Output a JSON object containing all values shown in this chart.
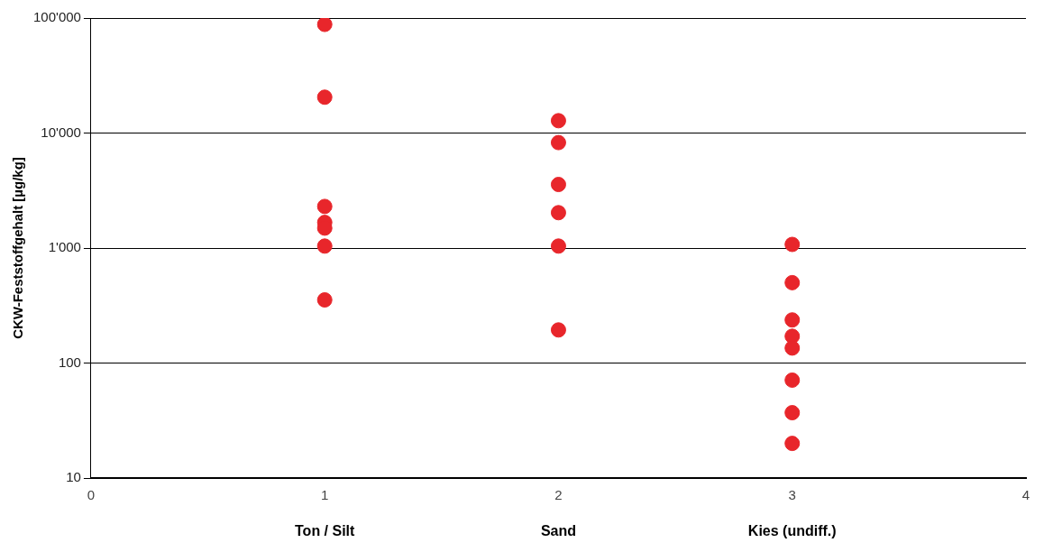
{
  "chart_data": {
    "type": "scatter",
    "ylabel": "CKW-Feststoffgehalt [µg/kg]",
    "x": [
      1,
      1,
      1,
      1,
      1,
      1,
      1,
      2,
      2,
      2,
      2,
      2,
      2,
      3,
      3,
      3,
      3,
      3,
      3,
      3,
      3
    ],
    "values": [
      88000,
      20500,
      2300,
      1670,
      1490,
      1040,
      354,
      12800,
      8260,
      3570,
      2030,
      1040,
      194,
      1075,
      500,
      237,
      171,
      135,
      71,
      37,
      20
    ],
    "color": "#e8262b",
    "marker": "circle",
    "log": "y",
    "grid": "y",
    "xlim": [
      0,
      4
    ],
    "xticks": [
      0,
      1,
      2,
      3,
      4
    ],
    "ylim": [
      10,
      100000
    ],
    "yticks": [
      {
        "value": 10,
        "label": "10"
      },
      {
        "value": 100,
        "label": "100"
      },
      {
        "value": 1000,
        "label": "1'000"
      },
      {
        "value": 10000,
        "label": "10'000"
      },
      {
        "value": 100000,
        "label": "100'000"
      }
    ],
    "annotations": [
      "Ton / Silt",
      "Sand",
      "Kies (undiff.)"
    ]
  }
}
